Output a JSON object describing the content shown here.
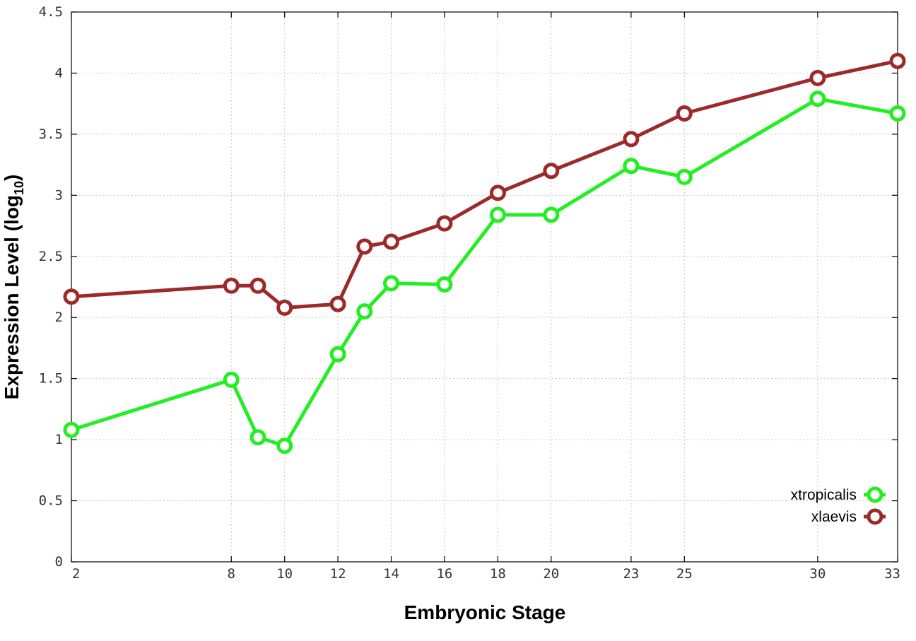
{
  "chart_data": {
    "type": "line",
    "xlabel": "Embryonic Stage",
    "ylabel_main": "Expression Level (log",
    "ylabel_sub": "10",
    "ylabel_close": ")",
    "x_ticks": [
      2,
      8,
      10,
      12,
      14,
      16,
      18,
      20,
      23,
      25,
      30,
      33
    ],
    "y_ticks": [
      "0",
      "0.5",
      "1",
      "1.5",
      "2",
      "2.5",
      "3",
      "3.5",
      "4",
      "4.5"
    ],
    "xlim": [
      2,
      33
    ],
    "ylim": [
      0,
      4.5
    ],
    "grid": true,
    "legend_position": "bottom-right",
    "series": [
      {
        "name": "xtropicalis",
        "color": "#22ee22",
        "x": [
          2,
          8,
          9,
          10,
          12,
          13,
          14,
          16,
          18,
          20,
          23,
          25,
          30,
          33
        ],
        "y": [
          1.08,
          1.49,
          1.02,
          0.95,
          1.7,
          2.05,
          2.28,
          2.27,
          2.84,
          2.84,
          3.24,
          3.15,
          3.79,
          3.67
        ]
      },
      {
        "name": "xlaevis",
        "color": "#9c2a2a",
        "x": [
          2,
          8,
          9,
          10,
          12,
          13,
          14,
          16,
          18,
          20,
          23,
          25,
          30,
          33
        ],
        "y": [
          2.17,
          2.26,
          2.26,
          2.08,
          2.11,
          2.58,
          2.62,
          2.77,
          3.02,
          3.2,
          3.46,
          3.67,
          3.96,
          4.1
        ]
      }
    ]
  }
}
